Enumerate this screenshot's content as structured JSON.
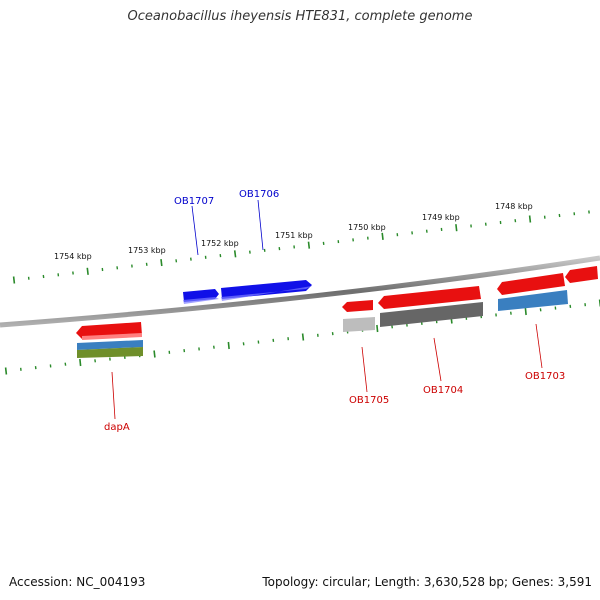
{
  "header": {
    "title": "Oceanobacillus iheyensis HTE831, complete genome"
  },
  "footer": {
    "accession": "Accession: NC_004193",
    "summary": "Topology: circular; Length: 3,630,528 bp; Genes: 3,591"
  },
  "colors": {
    "backbone": "#8a8a8a",
    "tick": "#2a8a2a",
    "forward_gene": "#1010e8",
    "reverse_gene": "#e81010",
    "blue_feature": "#3a7fc0",
    "olive_feature": "#6f8f2a",
    "gray_feature": "#666666",
    "light_gray_feature": "#bdbdbd",
    "forward_label": "#0000cc",
    "reverse_label": "#cc0000"
  },
  "scale": {
    "tick_labels": [
      "1754 kbp",
      "1753 kbp",
      "1752 kbp",
      "1751 kbp",
      "1750 kbp",
      "1749 kbp",
      "1748 kbp"
    ]
  },
  "genes": {
    "forward": [
      {
        "label": "OB1707"
      },
      {
        "label": "OB1706"
      }
    ],
    "reverse": [
      {
        "label": "dapA"
      },
      {
        "label": "OB1705"
      },
      {
        "label": "OB1704"
      },
      {
        "label": "OB1703"
      }
    ]
  }
}
